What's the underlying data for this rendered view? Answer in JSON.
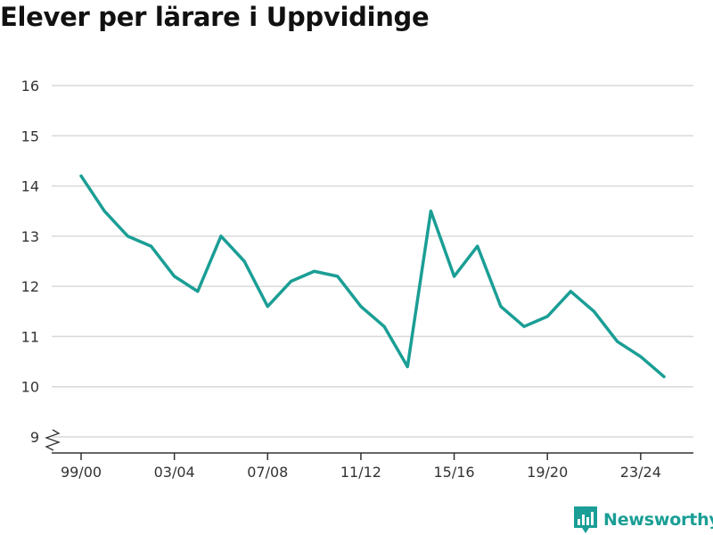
{
  "colors": {
    "line": "#1a9e95",
    "grid": "#d9d9d9",
    "axis": "#333333",
    "text": "#333333",
    "brand": "#1a9e95"
  },
  "brand": {
    "name": "Newsworthy",
    "icon": "newsworthy-logo-icon"
  },
  "chart_data": {
    "type": "line",
    "title": "Elever per lärare i Uppvidinge",
    "xlabel": "",
    "ylabel": "",
    "x": [
      "99/00",
      "00/01",
      "01/02",
      "02/03",
      "03/04",
      "04/05",
      "05/06",
      "06/07",
      "07/08",
      "08/09",
      "09/10",
      "10/11",
      "11/12",
      "12/13",
      "13/14",
      "14/15",
      "15/16",
      "16/17",
      "17/18",
      "18/19",
      "19/20",
      "20/21",
      "21/22",
      "22/23",
      "23/24",
      "24/25"
    ],
    "x_tick_labels": [
      "99/00",
      "03/04",
      "07/08",
      "11/12",
      "15/16",
      "19/20",
      "23/24"
    ],
    "y_ticks": [
      9,
      10,
      11,
      12,
      13,
      14,
      15,
      16
    ],
    "ylim": [
      9,
      16
    ],
    "y_axis_break": true,
    "grid": true,
    "series": [
      {
        "values": [
          14.2,
          13.5,
          13.0,
          12.8,
          12.2,
          11.9,
          13.0,
          12.5,
          11.6,
          12.1,
          12.3,
          12.2,
          11.6,
          11.2,
          10.4,
          13.5,
          12.2,
          12.8,
          11.6,
          11.2,
          11.4,
          11.9,
          11.5,
          10.9,
          10.6,
          10.2
        ]
      }
    ]
  }
}
